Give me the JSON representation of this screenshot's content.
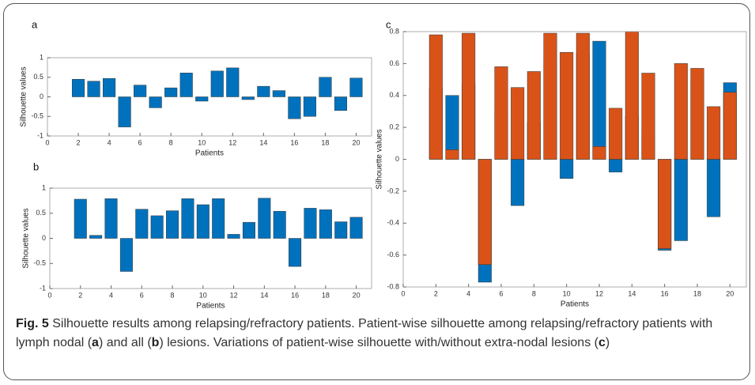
{
  "chart_data": [
    {
      "type": "bar",
      "title": "a",
      "xlabel": "Patients",
      "ylabel": "Silhouette values",
      "x": [
        2,
        3,
        4,
        5,
        6,
        7,
        8,
        9,
        10,
        11,
        12,
        13,
        14,
        15,
        16,
        17,
        18,
        19,
        20
      ],
      "values": [
        0.45,
        0.4,
        0.47,
        -0.77,
        0.3,
        -0.28,
        0.23,
        0.61,
        -0.11,
        0.66,
        0.74,
        -0.07,
        0.27,
        0.16,
        -0.56,
        -0.5,
        0.5,
        -0.35,
        0.48
      ],
      "color": "#0072BD",
      "xlim": [
        0,
        21
      ],
      "xticks": [
        0,
        2,
        4,
        6,
        8,
        10,
        12,
        14,
        16,
        18,
        20
      ],
      "ylim": [
        -1,
        1
      ],
      "yticks": [
        -1,
        -0.5,
        0,
        0.5,
        1
      ]
    },
    {
      "type": "bar",
      "title": "b",
      "xlabel": "Patients",
      "ylabel": "Silhouette values",
      "x": [
        2,
        3,
        4,
        5,
        6,
        7,
        8,
        9,
        10,
        11,
        12,
        13,
        14,
        15,
        16,
        17,
        18,
        19,
        20
      ],
      "values": [
        0.78,
        0.06,
        0.79,
        -0.66,
        0.58,
        0.45,
        0.55,
        0.79,
        0.67,
        0.79,
        0.08,
        0.32,
        0.8,
        0.54,
        -0.56,
        0.6,
        0.57,
        0.33,
        0.42
      ],
      "color": "#0072BD",
      "xlim": [
        0,
        21
      ],
      "xticks": [
        0,
        2,
        4,
        6,
        8,
        10,
        12,
        14,
        16,
        18,
        20
      ],
      "ylim": [
        -1,
        1
      ],
      "yticks": [
        -1,
        -0.5,
        0,
        0.5,
        1
      ]
    },
    {
      "type": "bar",
      "title": "c",
      "xlabel": "Patients",
      "ylabel": "Silhouette values",
      "x": [
        2,
        3,
        4,
        5,
        6,
        7,
        8,
        9,
        10,
        11,
        12,
        13,
        14,
        15,
        16,
        17,
        18,
        19,
        20
      ],
      "series": [
        {
          "color": "#0072BD",
          "values": [
            0.45,
            0.4,
            0.47,
            -0.77,
            0.3,
            -0.29,
            0.23,
            0.61,
            -0.12,
            0.66,
            0.74,
            -0.08,
            0.27,
            0.16,
            -0.57,
            -0.51,
            0.5,
            -0.36,
            0.48
          ]
        },
        {
          "color": "#D95319",
          "values": [
            0.78,
            0.06,
            0.79,
            -0.66,
            0.58,
            0.45,
            0.55,
            0.79,
            0.67,
            0.79,
            0.08,
            0.32,
            0.8,
            0.54,
            -0.56,
            0.6,
            0.57,
            0.33,
            0.42
          ]
        }
      ],
      "xlim": [
        0,
        21
      ],
      "xticks": [
        0,
        2,
        4,
        6,
        8,
        10,
        12,
        14,
        16,
        18,
        20
      ],
      "ylim": [
        -0.8,
        0.8
      ],
      "yticks": [
        -0.8,
        -0.6,
        -0.4,
        -0.2,
        0,
        0.2,
        0.4,
        0.6,
        0.8
      ]
    }
  ],
  "caption": {
    "label": "Fig. 5",
    "parts": [
      "Silhouette results among relapsing/refractory patients. Patient-wise silhouette among relapsing/refractory patients with lymph nodal (",
      "a",
      ") and all (",
      "b",
      ") lesions. Variations of patient-wise silhouette with/without extra-nodal lesions (",
      "c",
      ")"
    ]
  }
}
